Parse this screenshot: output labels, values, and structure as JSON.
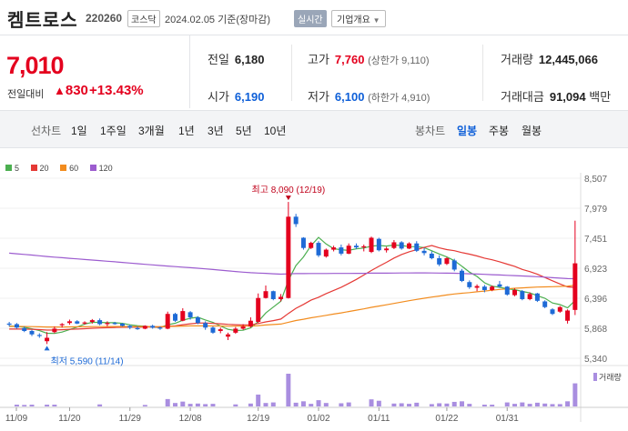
{
  "header": {
    "name": "켐트로스",
    "code": "220260",
    "market": "코스닥",
    "date_status": "2024.02.05  기준(장마감)",
    "realtime_label": "실시간",
    "company_label": "기업개요"
  },
  "price": {
    "current": "7,010",
    "change_label": "전일대비",
    "change": "830",
    "change_pct": "+13.43%"
  },
  "stats": {
    "prev_label": "전일",
    "prev": "6,180",
    "open_label": "시가",
    "open": "6,190",
    "high_label": "고가",
    "high": "7,760",
    "upper_limit": "(상한가 9,110)",
    "low_label": "저가",
    "low": "6,100",
    "lower_limit": "(하한가 4,910)",
    "volume_label": "거래량",
    "volume": "12,445,066",
    "amount_label": "거래대금",
    "amount": "91,094",
    "amount_unit": "백만"
  },
  "toolbar": {
    "line_label": "선차트",
    "periods": [
      "1일",
      "1주일",
      "3개월",
      "1년",
      "3년",
      "5년",
      "10년"
    ],
    "candle_label": "봉차트",
    "candle_periods": [
      "일봉",
      "주봉",
      "월봉"
    ],
    "candle_selected": "일봉"
  },
  "legend": [
    {
      "name": "5",
      "color": "#4caf50"
    },
    {
      "name": "20",
      "color": "#e53935"
    },
    {
      "name": "60",
      "color": "#f28c1e"
    },
    {
      "name": "120",
      "color": "#9c5ccf"
    }
  ],
  "chart_data": {
    "type": "candlestick",
    "y_ticks": [
      "8,507",
      "7,979",
      "7,451",
      "6,923",
      "6,396",
      "5,868",
      "5,340"
    ],
    "ylim": [
      5340,
      8507
    ],
    "x_ticks": [
      "11/09",
      "11/20",
      "11/29",
      "12/08",
      "12/19",
      "01/02",
      "01/11",
      "01/22",
      "01/31"
    ],
    "high_annotation": "최고 8,090 (12/19)",
    "low_annotation": "최저 5,590 (11/14)",
    "volume_label": "거래량",
    "candles": [
      [
        5950,
        5980,
        5900,
        5930
      ],
      [
        5940,
        5960,
        5860,
        5880
      ],
      [
        5870,
        5900,
        5800,
        5820
      ],
      [
        5820,
        5840,
        5730,
        5760
      ],
      [
        5750,
        5780,
        5700,
        5740
      ],
      [
        5640,
        5800,
        5590,
        5700
      ],
      [
        5800,
        5900,
        5780,
        5860
      ],
      [
        5920,
        5960,
        5880,
        5940
      ],
      [
        5960,
        6020,
        5930,
        5990
      ],
      [
        5990,
        6010,
        5940,
        5950
      ],
      [
        5960,
        5990,
        5930,
        5970
      ],
      [
        5980,
        6030,
        5950,
        6010
      ],
      [
        6010,
        6040,
        5920,
        5940
      ],
      [
        5940,
        5990,
        5900,
        5960
      ],
      [
        5960,
        5980,
        5930,
        5950
      ],
      [
        5950,
        5960,
        5900,
        5910
      ],
      [
        5910,
        5930,
        5850,
        5880
      ],
      [
        5870,
        5900,
        5840,
        5860
      ],
      [
        5860,
        5920,
        5850,
        5910
      ],
      [
        5910,
        5930,
        5860,
        5880
      ],
      [
        5880,
        5900,
        5840,
        5870
      ],
      [
        5860,
        6160,
        5850,
        6120
      ],
      [
        6120,
        6140,
        5980,
        6000
      ],
      [
        6000,
        6220,
        5990,
        6170
      ],
      [
        6150,
        6170,
        6020,
        6060
      ],
      [
        6060,
        6080,
        5940,
        5960
      ],
      [
        5960,
        5990,
        5840,
        5880
      ],
      [
        5880,
        5900,
        5770,
        5790
      ],
      [
        5820,
        5880,
        5780,
        5850
      ],
      [
        5720,
        5790,
        5660,
        5760
      ],
      [
        5790,
        5890,
        5770,
        5860
      ],
      [
        5860,
        5940,
        5840,
        5900
      ],
      [
        5900,
        6060,
        5880,
        6000
      ],
      [
        5980,
        6480,
        5960,
        6400
      ],
      [
        6400,
        6620,
        6390,
        6520
      ],
      [
        6520,
        6530,
        6360,
        6380
      ],
      [
        6380,
        6470,
        6340,
        6420
      ],
      [
        6400,
        8090,
        6390,
        7830
      ],
      [
        7830,
        7880,
        7650,
        7700
      ],
      [
        7460,
        7470,
        7250,
        7280
      ],
      [
        7280,
        7390,
        7260,
        7370
      ],
      [
        7370,
        7400,
        7120,
        7150
      ],
      [
        7130,
        7270,
        7110,
        7250
      ],
      [
        7250,
        7320,
        7220,
        7290
      ],
      [
        7290,
        7340,
        7150,
        7180
      ],
      [
        7180,
        7360,
        7170,
        7320
      ],
      [
        7320,
        7360,
        7260,
        7290
      ],
      [
        7290,
        7340,
        7220,
        7310
      ],
      [
        7210,
        7480,
        7190,
        7460
      ],
      [
        7440,
        7460,
        7220,
        7240
      ],
      [
        7240,
        7300,
        7200,
        7270
      ],
      [
        7280,
        7420,
        7260,
        7380
      ],
      [
        7380,
        7400,
        7250,
        7270
      ],
      [
        7270,
        7380,
        7260,
        7360
      ],
      [
        7360,
        7400,
        7210,
        7230
      ],
      [
        7230,
        7280,
        7150,
        7190
      ],
      [
        7180,
        7220,
        7080,
        7100
      ],
      [
        7100,
        7150,
        6960,
        6990
      ],
      [
        7000,
        7120,
        6980,
        7100
      ],
      [
        7060,
        7090,
        6870,
        6900
      ],
      [
        6880,
        6910,
        6680,
        6700
      ],
      [
        6680,
        6710,
        6560,
        6590
      ],
      [
        6580,
        6640,
        6520,
        6610
      ],
      [
        6600,
        6630,
        6500,
        6540
      ],
      [
        6540,
        6620,
        6520,
        6600
      ],
      [
        6640,
        6700,
        6580,
        6600
      ],
      [
        6600,
        6610,
        6440,
        6460
      ],
      [
        6450,
        6570,
        6430,
        6540
      ],
      [
        6520,
        6540,
        6360,
        6380
      ],
      [
        6380,
        6500,
        6360,
        6470
      ],
      [
        6480,
        6490,
        6330,
        6350
      ],
      [
        6340,
        6360,
        6220,
        6240
      ],
      [
        6200,
        6220,
        6100,
        6120
      ],
      [
        6160,
        6260,
        6140,
        6240
      ],
      [
        6000,
        6200,
        5950,
        6180
      ],
      [
        6190,
        7760,
        6100,
        7010
      ]
    ]
  }
}
